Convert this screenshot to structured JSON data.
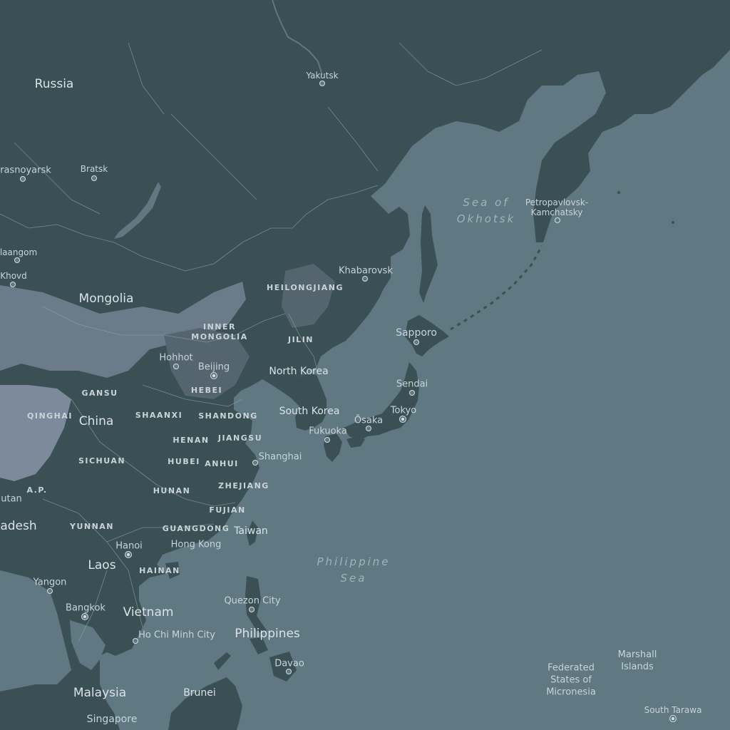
{
  "map": {
    "colors": {
      "water": "#5f7882",
      "land": "#3b5055",
      "highland": "#6b7b8a",
      "plateau": "#7c8a9c",
      "border": "#8fa2a8",
      "label": "#d9e3e8"
    },
    "countries": {
      "russia": "Russia",
      "mongolia": "Mongolia",
      "china": "China",
      "north_korea": "North Korea",
      "south_korea": "South Korea",
      "laos": "Laos",
      "vietnam": "Vietnam",
      "philippines": "Philippines",
      "malaysia": "Malaysia",
      "brunei": "Brunei",
      "bangladesh_partial": "adesh",
      "bhutan_partial": "utan",
      "taiwan": "Taiwan",
      "fsm": "Federated\nStates of\nMicronesia",
      "marshall": "Marshall\nIslands"
    },
    "cities": {
      "yakutsk": "Yakutsk",
      "krasnoyarsk": "rasnoyarsk",
      "bratsk": "Bratsk",
      "ulaangom": "laangom",
      "khovd": "Khovd",
      "khabarovsk": "Khabarovsk",
      "petropavlovsk": "Petropavlovsk-\nKamchatsky",
      "sapporo": "Sapporo",
      "sendai": "Sendai",
      "tokyo": "Tokyo",
      "osaka": "Ōsaka",
      "fukuoka": "Fukuoka",
      "hohhot": "Hohhot",
      "beijing": "Beijing",
      "shanghai": "Shanghai",
      "hong_kong": "Hong Kong",
      "hanoi": "Hanoi",
      "yangon": "Yangon",
      "bangkok": "Bangkok",
      "ho_chi_minh": "Ho Chi Minh City",
      "quezon": "Quezon City",
      "davao": "Davao",
      "singapore": "Singapore",
      "south_tarawa": "South Tarawa"
    },
    "regions": {
      "heilongjiang": "HEILONGJIANG",
      "inner_mongolia": "INNER\nMONGOLIA",
      "jilin": "JILIN",
      "hebei": "HEBEI",
      "gansu": "GANSU",
      "qinghai": "QINGHAI",
      "shaanxi": "SHAANXI",
      "shandong": "SHANDONG",
      "henan": "HENAN",
      "jiangsu": "JIANGSU",
      "sichuan": "SICHUAN",
      "hubei": "HUBEI",
      "anhui": "ANHUI",
      "ap": "A.P.",
      "hunan": "HUNAN",
      "zhejiang": "ZHEJIANG",
      "fujian": "FUJIAN",
      "yunnan": "YUNNAN",
      "guangdong": "GUANGDONG",
      "hainan": "HAINAN"
    },
    "seas": {
      "okhotsk": "Sea of\nOkhotsk",
      "philippine": "Philippine\nSea"
    }
  }
}
